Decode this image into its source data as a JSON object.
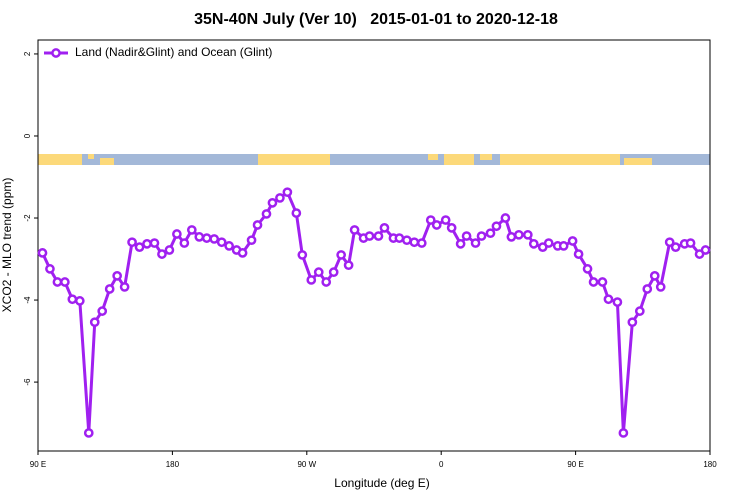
{
  "chart_data": {
    "type": "line",
    "title": "35N-40N July (Ver 10)   2015-01-01 to 2020-12-18",
    "x_label": "Longitude (deg E)",
    "y_label": "XCO2 - MLO trend (ppm)",
    "xlim": [
      90,
      540
    ],
    "ylim": [
      -7.68,
      2.34
    ],
    "xticks": [
      {
        "value": 90,
        "label": "90 E"
      },
      180,
      {
        "value": 270,
        "label": "90 W"
      },
      {
        "value": 360,
        "label": "0"
      },
      {
        "value": 450,
        "label": "90 E"
      },
      {
        "value": 540,
        "label": "180"
      }
    ],
    "yticks": [
      -6,
      -4,
      -2,
      0,
      2
    ],
    "legend": "top-left",
    "x": [
      93,
      98,
      103,
      108,
      113,
      118,
      124,
      128,
      133,
      138,
      143,
      148,
      153,
      158,
      163,
      168,
      173,
      178,
      183,
      188,
      193,
      198,
      203,
      208,
      213,
      218,
      223,
      227,
      233,
      237,
      243,
      247,
      252,
      257,
      263,
      267,
      273,
      278,
      283,
      288,
      293,
      298,
      302,
      308,
      312,
      318,
      322,
      328,
      332,
      337,
      342,
      347,
      353,
      357,
      363,
      367,
      373,
      377,
      383,
      387,
      393,
      397,
      403,
      407,
      412,
      418,
      422,
      428,
      432,
      438,
      442,
      448,
      452,
      458,
      462,
      468,
      472,
      478,
      482,
      488,
      493,
      498,
      503,
      507,
      513,
      517,
      523,
      527,
      533,
      537
    ],
    "series": [
      {
        "name": "Land (Nadir&Glint) and Ocean (Glint)",
        "color": "#a020f0",
        "values": [
          -2.85,
          -3.24,
          -3.56,
          -3.56,
          -3.98,
          -4.02,
          -7.24,
          -4.54,
          -4.27,
          -3.73,
          -3.41,
          -3.68,
          -2.59,
          -2.71,
          -2.63,
          -2.61,
          -2.88,
          -2.78,
          -2.39,
          -2.61,
          -2.29,
          -2.46,
          -2.49,
          -2.51,
          -2.59,
          -2.68,
          -2.78,
          -2.85,
          -2.54,
          -2.17,
          -1.9,
          -1.63,
          -1.51,
          -1.37,
          -1.88,
          -2.9,
          -3.51,
          -3.32,
          -3.56,
          -3.32,
          -2.9,
          -3.15,
          -2.29,
          -2.49,
          -2.44,
          -2.44,
          -2.24,
          -2.49,
          -2.49,
          -2.54,
          -2.59,
          -2.61,
          -2.05,
          -2.17,
          -2.05,
          -2.24,
          -2.63,
          -2.44,
          -2.61,
          -2.44,
          -2.37,
          -2.2,
          -2.0,
          -2.46,
          -2.41,
          -2.41,
          -2.63,
          -2.71,
          -2.61,
          -2.68,
          -2.68,
          -2.56,
          -2.88,
          -3.24,
          -3.56,
          -3.56,
          -3.98,
          -4.05,
          -7.24,
          -4.54,
          -4.27,
          -3.73,
          -3.41,
          -3.68,
          -2.59,
          -2.71,
          -2.63,
          -2.61,
          -2.88,
          -2.78
        ]
      }
    ]
  }
}
